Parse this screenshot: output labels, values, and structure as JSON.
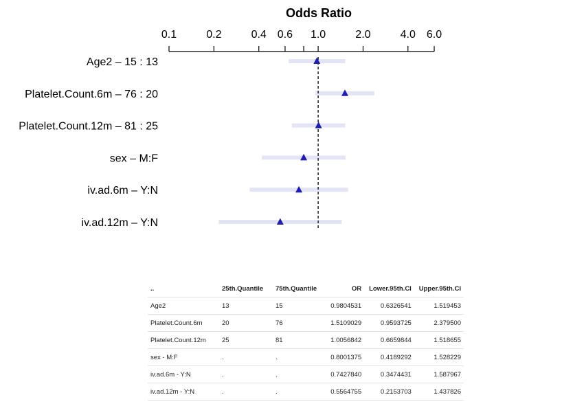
{
  "chart_data": {
    "type": "forest",
    "title": "Odds Ratio",
    "x_axis": {
      "scale": "log",
      "range": [
        0.1,
        6.0
      ],
      "tick_labels": [
        "0.1",
        "0.2",
        "0.4",
        "0.6",
        "1.0",
        "2.0",
        "4.0",
        "6.0"
      ],
      "tick_values": [
        0.1,
        0.2,
        0.4,
        0.6,
        1.0,
        2.0,
        4.0,
        6.0
      ],
      "minor_ticks": [
        0.8
      ],
      "position": "top"
    },
    "reference_line": 1.0,
    "rows": [
      {
        "label": "Age2 – 15 : 13",
        "or": 0.9804531,
        "lower": 0.6326541,
        "upper": 1.519453
      },
      {
        "label": "Platelet.Count.6m – 76 : 20",
        "or": 1.5109029,
        "lower": 0.9593725,
        "upper": 2.3795
      },
      {
        "label": "Platelet.Count.12m – 81 : 25",
        "or": 1.0056842,
        "lower": 0.6659844,
        "upper": 1.518655
      },
      {
        "label": "sex – M:F",
        "or": 0.8001375,
        "lower": 0.4189292,
        "upper": 1.528229
      },
      {
        "label": "iv.ad.6m – Y:N",
        "or": 0.742784,
        "lower": 0.3474431,
        "upper": 1.587967
      },
      {
        "label": "iv.ad.12m – Y:N",
        "or": 0.5564755,
        "lower": 0.2153703,
        "upper": 1.437826
      }
    ],
    "colors": {
      "ci_band": "#e4e4f7",
      "marker": "#1e1eb4"
    }
  },
  "table": {
    "headers": [
      "..",
      "25th.Quantile",
      "75th.Quantile",
      "OR",
      "Lower.95th.CI",
      "Upper.95th.CI"
    ],
    "rows": [
      [
        "Age2",
        "13",
        "15",
        "0.9804531",
        "0.6326541",
        "1.519453"
      ],
      [
        "Platelet.Count.6m",
        "20",
        "76",
        "1.5109029",
        "0.9593725",
        "2.379500"
      ],
      [
        "Platelet.Count.12m",
        "25",
        "81",
        "1.0056842",
        "0.6659844",
        "1.518655"
      ],
      [
        "sex - M:F",
        ".",
        ".",
        "0.8001375",
        "0.4189292",
        "1.528229"
      ],
      [
        "iv.ad.6m - Y:N",
        ".",
        ".",
        "0.7427840",
        "0.3474431",
        "1.587967"
      ],
      [
        "iv.ad.12m - Y:N",
        ".",
        ".",
        "0.5564755",
        "0.2153703",
        "1.437826"
      ]
    ]
  }
}
